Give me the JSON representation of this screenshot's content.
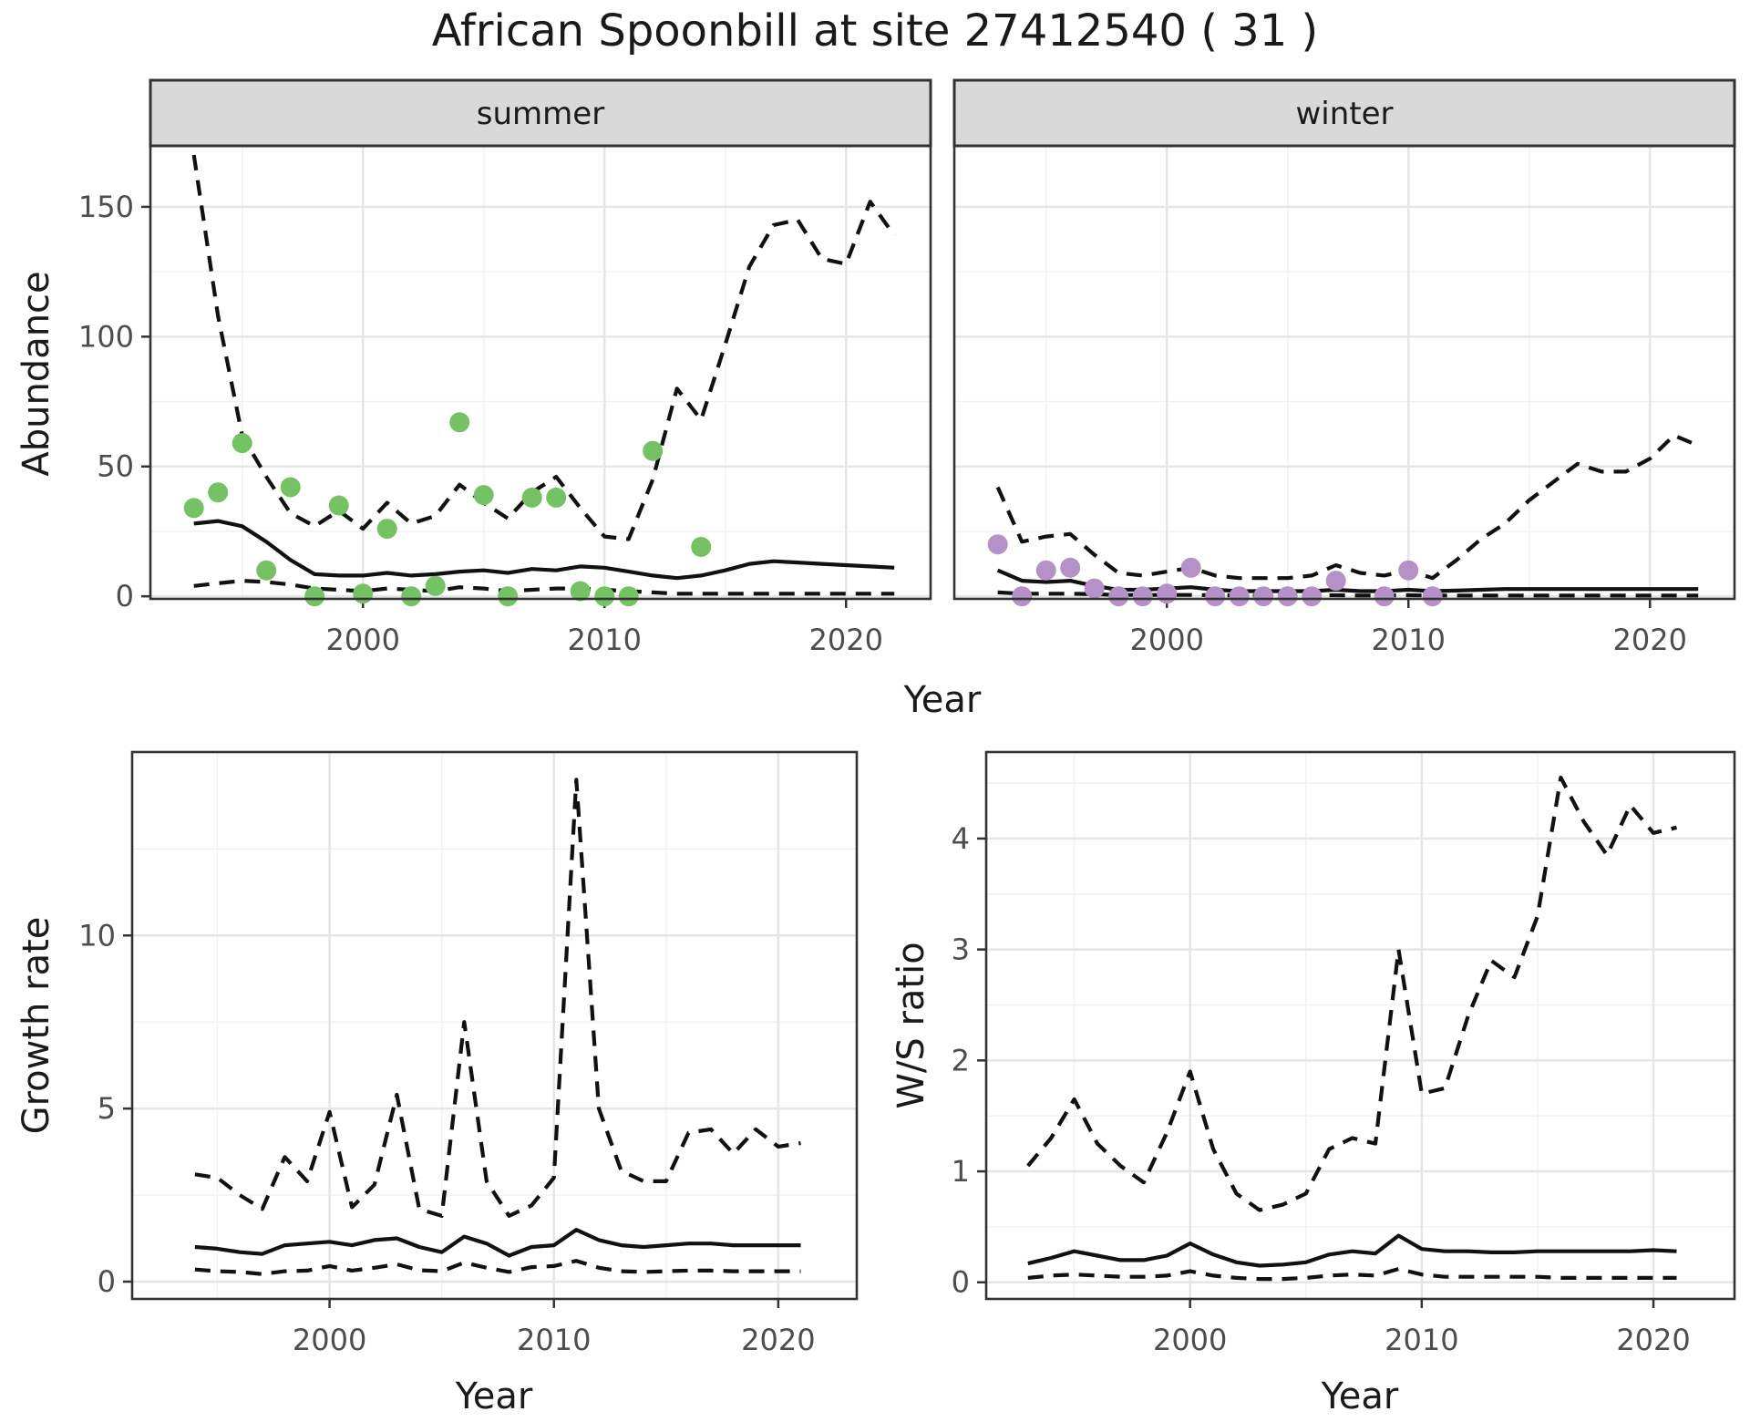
{
  "title": "African Spoonbill at site 27412540 ( 31 )",
  "axes": {
    "abundance_ylabel": "Abundance",
    "top_xlabel": "Year",
    "growth_ylabel": "Growth rate",
    "growth_xlabel": "Year",
    "ws_ylabel": "W/S ratio",
    "ws_xlabel": "Year"
  },
  "colors": {
    "summer_points": "#74c264",
    "winter_points": "#b691c8",
    "line": "#111111",
    "strip_bg": "#d9d9d9",
    "panel_border": "#333333",
    "grid_major": "#e6e6e6",
    "grid_minor": "#f2f2f2",
    "tick_mark": "#333333",
    "tick_label": "#4d4d4d",
    "text": "#1a1a1a"
  },
  "chart_data": [
    {
      "id": "abundance-summer",
      "type": "line",
      "facet_label": "summer",
      "xlabel": "Year",
      "ylabel": "Abundance",
      "x_range": [
        1991.2,
        2023.5
      ],
      "y_range": [
        -1,
        173.5
      ],
      "x_ticks": [
        2000,
        2010,
        2020
      ],
      "x_minor": [
        1995,
        2005,
        2015
      ],
      "y_ticks": [
        0,
        50,
        100,
        150
      ],
      "y_minor": [
        25,
        75,
        125
      ],
      "legend": "none",
      "series": [
        {
          "name": "upper-ci",
          "style": "dashed",
          "years": [
            1993,
            1994,
            1995,
            1996,
            1997,
            1998,
            1999,
            2000,
            2001,
            2002,
            2003,
            2004,
            2005,
            2006,
            2007,
            2008,
            2009,
            2010,
            2011,
            2012,
            2013,
            2014,
            2015,
            2016,
            2017,
            2018,
            2019,
            2020,
            2021,
            2022
          ],
          "values": [
            170,
            108,
            62,
            46,
            32,
            27,
            33,
            26,
            36,
            28,
            31,
            43,
            36,
            30,
            40,
            46,
            34,
            23,
            22,
            45,
            80,
            68,
            97,
            127,
            143,
            145,
            130,
            128,
            152,
            139
          ]
        },
        {
          "name": "median",
          "style": "solid",
          "years": [
            1993,
            1994,
            1995,
            1996,
            1997,
            1998,
            1999,
            2000,
            2001,
            2002,
            2003,
            2004,
            2005,
            2006,
            2007,
            2008,
            2009,
            2010,
            2011,
            2012,
            2013,
            2014,
            2015,
            2016,
            2017,
            2018,
            2019,
            2020,
            2021,
            2022
          ],
          "values": [
            28,
            29,
            27,
            21,
            14,
            8.5,
            8,
            8,
            9,
            8,
            8.5,
            9.5,
            10,
            9,
            10.5,
            10,
            11.5,
            11,
            9.5,
            8,
            7,
            8,
            10,
            12.5,
            13.5,
            13,
            12.5,
            12,
            11.5,
            11
          ]
        },
        {
          "name": "lower-ci",
          "style": "dashed",
          "years": [
            1993,
            1994,
            1995,
            1996,
            1997,
            1998,
            1999,
            2000,
            2001,
            2002,
            2003,
            2004,
            2005,
            2006,
            2007,
            2008,
            2009,
            2010,
            2011,
            2012,
            2013,
            2014,
            2015,
            2016,
            2017,
            2018,
            2019,
            2020,
            2021,
            2022
          ],
          "values": [
            4,
            5,
            6,
            5.5,
            4.5,
            3,
            2.5,
            2,
            3,
            2.5,
            2,
            3.5,
            3,
            2,
            2.5,
            3,
            3,
            2.5,
            2,
            1.5,
            1,
            1,
            1,
            1,
            1,
            1,
            1,
            1,
            1,
            1
          ]
        },
        {
          "name": "observed-counts",
          "style": "points",
          "color_key": "summer_points",
          "years": [
            1993,
            1994,
            1995,
            1996,
            1997,
            1998,
            1999,
            2000,
            2001,
            2002,
            2003,
            2004,
            2005,
            2006,
            2007,
            2008,
            2009,
            2010,
            2011,
            2012,
            2014
          ],
          "values": [
            34,
            40,
            59,
            10,
            42,
            0,
            35,
            1,
            26,
            0,
            4,
            67,
            39,
            0,
            38,
            38,
            2,
            0,
            0,
            56,
            19
          ]
        }
      ]
    },
    {
      "id": "abundance-winter",
      "type": "line",
      "facet_label": "winter",
      "xlabel": "Year",
      "ylabel": "Abundance",
      "x_range": [
        1991.2,
        2023.5
      ],
      "y_range": [
        -1,
        173.5
      ],
      "x_ticks": [
        2000,
        2010,
        2020
      ],
      "x_minor": [
        1995,
        2005,
        2015
      ],
      "y_ticks": [
        0,
        50,
        100,
        150
      ],
      "y_minor": [
        25,
        75,
        125
      ],
      "legend": "none",
      "series": [
        {
          "name": "upper-ci",
          "style": "dashed",
          "years": [
            1993,
            1994,
            1995,
            1996,
            1997,
            1998,
            1999,
            2000,
            2001,
            2002,
            2003,
            2004,
            2005,
            2006,
            2007,
            2008,
            2009,
            2010,
            2011,
            2012,
            2013,
            2014,
            2015,
            2016,
            2017,
            2018,
            2019,
            2020,
            2021,
            2022
          ],
          "values": [
            42,
            21,
            23,
            24,
            16,
            9,
            8,
            9.5,
            11,
            8,
            7,
            7,
            7,
            8,
            12,
            9,
            8,
            10,
            7,
            14,
            22,
            28,
            37,
            44,
            51,
            48,
            48,
            53,
            62,
            58
          ]
        },
        {
          "name": "median",
          "style": "solid",
          "years": [
            1993,
            1994,
            1995,
            1996,
            1997,
            1998,
            1999,
            2000,
            2001,
            2002,
            2003,
            2004,
            2005,
            2006,
            2007,
            2008,
            2009,
            2010,
            2011,
            2012,
            2013,
            2014,
            2015,
            2016,
            2017,
            2018,
            2019,
            2020,
            2021,
            2022
          ],
          "values": [
            10,
            6,
            5.5,
            6,
            4,
            2.5,
            2.5,
            3,
            3.5,
            2.5,
            2,
            2,
            2,
            2,
            2.5,
            2,
            2,
            2.5,
            2,
            2.2,
            2.5,
            2.8,
            2.8,
            2.8,
            2.8,
            2.8,
            2.8,
            2.8,
            2.8,
            2.8
          ]
        },
        {
          "name": "lower-ci",
          "style": "dashed",
          "years": [
            1993,
            1994,
            1995,
            1996,
            1997,
            1998,
            1999,
            2000,
            2001,
            2002,
            2003,
            2004,
            2005,
            2006,
            2007,
            2008,
            2009,
            2010,
            2011,
            2012,
            2013,
            2014,
            2015,
            2016,
            2017,
            2018,
            2019,
            2020,
            2021,
            2022
          ],
          "values": [
            1.5,
            1,
            1,
            1,
            0.8,
            0.5,
            0.5,
            0.5,
            0.5,
            0.4,
            0.3,
            0.3,
            0.3,
            0.3,
            0.4,
            0.3,
            0.3,
            0.4,
            0.3,
            0.3,
            0.3,
            0.3,
            0.3,
            0.3,
            0.3,
            0.3,
            0.3,
            0.3,
            0.3,
            0.3
          ]
        },
        {
          "name": "observed-counts",
          "style": "points",
          "color_key": "winter_points",
          "years": [
            1993,
            1994,
            1995,
            1996,
            1997,
            1998,
            1999,
            2000,
            2001,
            2002,
            2003,
            2004,
            2005,
            2006,
            2007,
            2009,
            2010,
            2011
          ],
          "values": [
            20,
            0,
            10,
            11,
            3,
            0,
            0,
            1,
            11,
            0,
            0,
            0,
            0,
            0,
            6,
            0,
            10,
            0
          ]
        }
      ]
    },
    {
      "id": "growth-rate",
      "type": "line",
      "facet_label": "",
      "xlabel": "Year",
      "ylabel": "Growth rate",
      "x_range": [
        1991.2,
        2023.5
      ],
      "y_range": [
        -0.5,
        15.3
      ],
      "x_ticks": [
        2000,
        2010,
        2020
      ],
      "x_minor": [
        1995,
        2005,
        2015
      ],
      "y_ticks": [
        0,
        5,
        10
      ],
      "y_minor": [
        2.5,
        7.5,
        12.5
      ],
      "legend": "none",
      "series": [
        {
          "name": "upper-ci",
          "style": "dashed",
          "years": [
            1994,
            1995,
            1996,
            1997,
            1998,
            1999,
            2000,
            2001,
            2002,
            2003,
            2004,
            2005,
            2006,
            2007,
            2008,
            2009,
            2010,
            2011,
            2012,
            2013,
            2014,
            2015,
            2016,
            2017,
            2018,
            2019,
            2020,
            2021
          ],
          "values": [
            3.1,
            3.0,
            2.5,
            2.1,
            3.6,
            2.9,
            4.9,
            2.15,
            2.8,
            5.4,
            2.1,
            1.9,
            7.5,
            2.9,
            1.9,
            2.2,
            3.0,
            14.5,
            5.0,
            3.2,
            2.9,
            2.9,
            4.3,
            4.4,
            3.7,
            4.4,
            3.9,
            4.0
          ]
        },
        {
          "name": "median",
          "style": "solid",
          "years": [
            1994,
            1995,
            1996,
            1997,
            1998,
            1999,
            2000,
            2001,
            2002,
            2003,
            2004,
            2005,
            2006,
            2007,
            2008,
            2009,
            2010,
            2011,
            2012,
            2013,
            2014,
            2015,
            2016,
            2017,
            2018,
            2019,
            2020,
            2021
          ],
          "values": [
            1.0,
            0.95,
            0.85,
            0.8,
            1.05,
            1.1,
            1.15,
            1.05,
            1.2,
            1.25,
            1.0,
            0.85,
            1.3,
            1.1,
            0.75,
            1.0,
            1.05,
            1.5,
            1.2,
            1.05,
            1.0,
            1.05,
            1.1,
            1.1,
            1.05,
            1.05,
            1.05,
            1.05
          ]
        },
        {
          "name": "lower-ci",
          "style": "dashed",
          "years": [
            1994,
            1995,
            1996,
            1997,
            1998,
            1999,
            2000,
            2001,
            2002,
            2003,
            2004,
            2005,
            2006,
            2007,
            2008,
            2009,
            2010,
            2011,
            2012,
            2013,
            2014,
            2015,
            2016,
            2017,
            2018,
            2019,
            2020,
            2021
          ],
          "values": [
            0.35,
            0.3,
            0.28,
            0.22,
            0.3,
            0.32,
            0.45,
            0.32,
            0.4,
            0.5,
            0.33,
            0.3,
            0.55,
            0.4,
            0.28,
            0.42,
            0.45,
            0.6,
            0.4,
            0.3,
            0.28,
            0.3,
            0.32,
            0.32,
            0.3,
            0.3,
            0.3,
            0.3
          ]
        }
      ]
    },
    {
      "id": "ws-ratio",
      "type": "line",
      "facet_label": "",
      "xlabel": "Year",
      "ylabel": "W/S ratio",
      "x_range": [
        1991.2,
        2023.5
      ],
      "y_range": [
        -0.15,
        4.78
      ],
      "x_ticks": [
        2000,
        2010,
        2020
      ],
      "x_minor": [
        1995,
        2005,
        2015
      ],
      "y_ticks": [
        0,
        1,
        2,
        3,
        4
      ],
      "y_minor": [
        0.5,
        1.5,
        2.5,
        3.5,
        4.5
      ],
      "legend": "none",
      "series": [
        {
          "name": "upper-ci",
          "style": "dashed",
          "years": [
            1993,
            1994,
            1995,
            1996,
            1997,
            1998,
            1999,
            2000,
            2001,
            2002,
            2003,
            2004,
            2005,
            2006,
            2007,
            2008,
            2009,
            2010,
            2011,
            2012,
            2013,
            2014,
            2015,
            2016,
            2017,
            2018,
            2019,
            2020,
            2021
          ],
          "values": [
            1.05,
            1.3,
            1.65,
            1.25,
            1.05,
            0.9,
            1.35,
            1.9,
            1.2,
            0.8,
            0.65,
            0.7,
            0.8,
            1.2,
            1.3,
            1.25,
            3.0,
            1.7,
            1.75,
            2.4,
            2.9,
            2.75,
            3.3,
            4.55,
            4.15,
            3.85,
            4.3,
            4.05,
            4.1
          ]
        },
        {
          "name": "median",
          "style": "solid",
          "years": [
            1993,
            1994,
            1995,
            1996,
            1997,
            1998,
            1999,
            2000,
            2001,
            2002,
            2003,
            2004,
            2005,
            2006,
            2007,
            2008,
            2009,
            2010,
            2011,
            2012,
            2013,
            2014,
            2015,
            2016,
            2017,
            2018,
            2019,
            2020,
            2021
          ],
          "values": [
            0.17,
            0.22,
            0.28,
            0.24,
            0.2,
            0.2,
            0.24,
            0.35,
            0.25,
            0.18,
            0.15,
            0.16,
            0.18,
            0.25,
            0.28,
            0.26,
            0.42,
            0.3,
            0.28,
            0.28,
            0.27,
            0.27,
            0.28,
            0.28,
            0.28,
            0.28,
            0.28,
            0.29,
            0.28
          ]
        },
        {
          "name": "lower-ci",
          "style": "dashed",
          "years": [
            1993,
            1994,
            1995,
            1996,
            1997,
            1998,
            1999,
            2000,
            2001,
            2002,
            2003,
            2004,
            2005,
            2006,
            2007,
            2008,
            2009,
            2010,
            2011,
            2012,
            2013,
            2014,
            2015,
            2016,
            2017,
            2018,
            2019,
            2020,
            2021
          ],
          "values": [
            0.04,
            0.06,
            0.07,
            0.06,
            0.05,
            0.05,
            0.06,
            0.1,
            0.06,
            0.04,
            0.03,
            0.03,
            0.04,
            0.06,
            0.07,
            0.06,
            0.12,
            0.07,
            0.05,
            0.05,
            0.05,
            0.05,
            0.05,
            0.04,
            0.04,
            0.04,
            0.04,
            0.04,
            0.04
          ]
        }
      ]
    }
  ]
}
